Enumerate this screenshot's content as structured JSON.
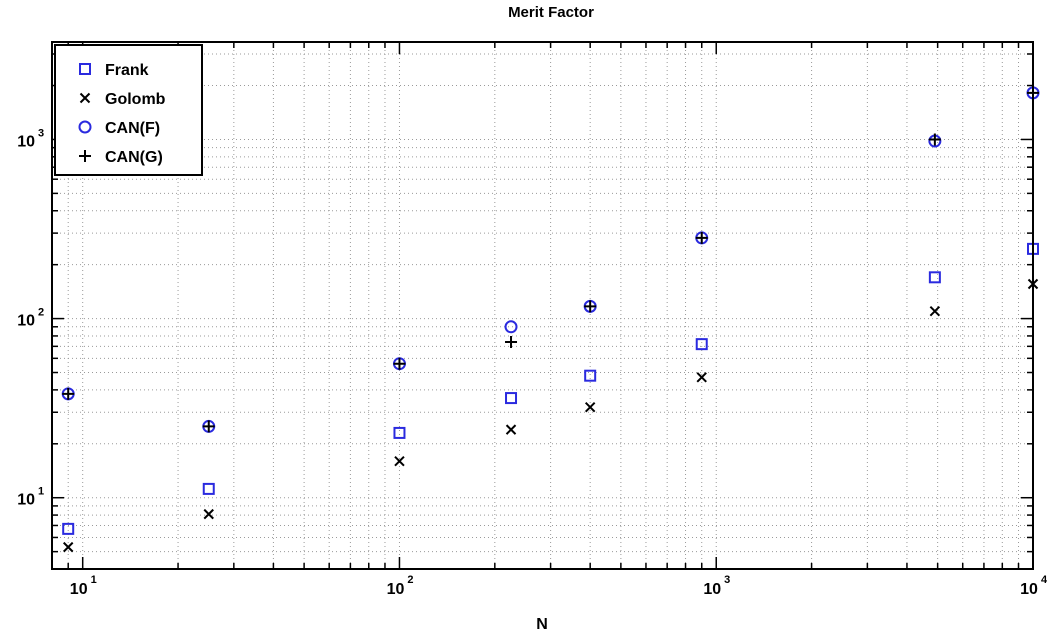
{
  "chart_data": {
    "type": "scatter",
    "title": "Merit Factor",
    "xlabel": "N",
    "ylabel": "",
    "xscale": "log",
    "yscale": "log",
    "xlim": [
      8,
      10000
    ],
    "ylim": [
      4,
      3500
    ],
    "grid": true,
    "legend_position": "top-left",
    "x_ticks": [
      {
        "base": "10",
        "exp": "1"
      },
      {
        "base": "10",
        "exp": "2"
      },
      {
        "base": "10",
        "exp": "3"
      },
      {
        "base": "10",
        "exp": "4"
      }
    ],
    "y_ticks": [
      {
        "base": "10",
        "exp": "1"
      },
      {
        "base": "10",
        "exp": "2"
      },
      {
        "base": "10",
        "exp": "3"
      }
    ],
    "series": [
      {
        "name": "Frank",
        "marker": "square",
        "color": "#2a2adf",
        "x": [
          9,
          25,
          100,
          225,
          400,
          900,
          4900,
          10000
        ],
        "y": [
          6.7,
          11.2,
          23,
          36,
          48,
          72,
          170,
          245
        ]
      },
      {
        "name": "Golomb",
        "marker": "x",
        "color": "#000000",
        "x": [
          9,
          25,
          100,
          225,
          400,
          900,
          4900,
          10000
        ],
        "y": [
          5.3,
          8.1,
          16,
          24,
          32,
          47,
          110,
          156
        ]
      },
      {
        "name": "CAN(F)",
        "marker": "circle",
        "color": "#2a2adf",
        "x": [
          9,
          25,
          100,
          225,
          400,
          900,
          4900,
          10000
        ],
        "y": [
          38,
          25,
          56,
          90,
          117,
          282,
          980,
          1820
        ]
      },
      {
        "name": "CAN(G)",
        "marker": "plus",
        "color": "#000000",
        "x": [
          9,
          25,
          100,
          225,
          400,
          900,
          4900,
          10000
        ],
        "y": [
          38,
          25,
          56,
          74,
          117,
          282,
          1000,
          1820
        ]
      }
    ]
  }
}
